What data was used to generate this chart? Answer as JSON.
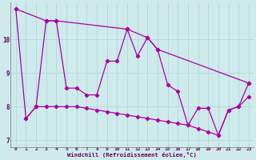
{
  "xlabel": "Windchill (Refroidissement éolien,°C)",
  "bg_color": "#ceeaea",
  "line_color": "#aa00aa",
  "grid_color": "#b0d8d8",
  "xlim": [
    -0.5,
    23.5
  ],
  "ylim": [
    6.8,
    11.1
  ],
  "xticks": [
    0,
    1,
    2,
    3,
    4,
    5,
    6,
    7,
    8,
    9,
    10,
    11,
    12,
    13,
    14,
    15,
    16,
    17,
    18,
    19,
    20,
    21,
    22,
    23
  ],
  "yticks": [
    7,
    8,
    9,
    10
  ],
  "series1": [
    [
      0,
      10.9
    ],
    [
      1,
      7.65
    ],
    [
      2,
      8.0
    ],
    [
      3,
      10.55
    ],
    [
      4,
      10.55
    ],
    [
      5,
      8.55
    ],
    [
      6,
      8.55
    ],
    [
      7,
      8.35
    ],
    [
      8,
      8.35
    ],
    [
      9,
      9.35
    ],
    [
      10,
      9.35
    ],
    [
      11,
      10.3
    ],
    [
      12,
      9.5
    ],
    [
      13,
      10.05
    ],
    [
      14,
      9.7
    ],
    [
      15,
      8.65
    ],
    [
      16,
      8.45
    ],
    [
      17,
      7.45
    ],
    [
      18,
      7.95
    ],
    [
      19,
      7.95
    ],
    [
      20,
      7.15
    ],
    [
      21,
      7.9
    ],
    [
      22,
      8.0
    ],
    [
      23,
      8.7
    ]
  ],
  "series2": [
    [
      0,
      10.9
    ],
    [
      3,
      10.55
    ],
    [
      4,
      10.55
    ],
    [
      11,
      10.3
    ],
    [
      13,
      10.05
    ],
    [
      14,
      9.7
    ],
    [
      23,
      8.7
    ]
  ],
  "series3": [
    [
      1,
      7.65
    ],
    [
      2,
      8.0
    ],
    [
      3,
      8.0
    ],
    [
      4,
      8.0
    ],
    [
      5,
      8.0
    ],
    [
      6,
      8.0
    ],
    [
      7,
      7.95
    ],
    [
      8,
      7.9
    ],
    [
      9,
      7.85
    ],
    [
      10,
      7.8
    ],
    [
      11,
      7.75
    ],
    [
      12,
      7.7
    ],
    [
      13,
      7.65
    ],
    [
      14,
      7.6
    ],
    [
      15,
      7.55
    ],
    [
      16,
      7.5
    ],
    [
      17,
      7.45
    ],
    [
      18,
      7.35
    ],
    [
      19,
      7.25
    ],
    [
      20,
      7.15
    ],
    [
      21,
      7.9
    ],
    [
      22,
      8.0
    ],
    [
      23,
      8.3
    ]
  ]
}
